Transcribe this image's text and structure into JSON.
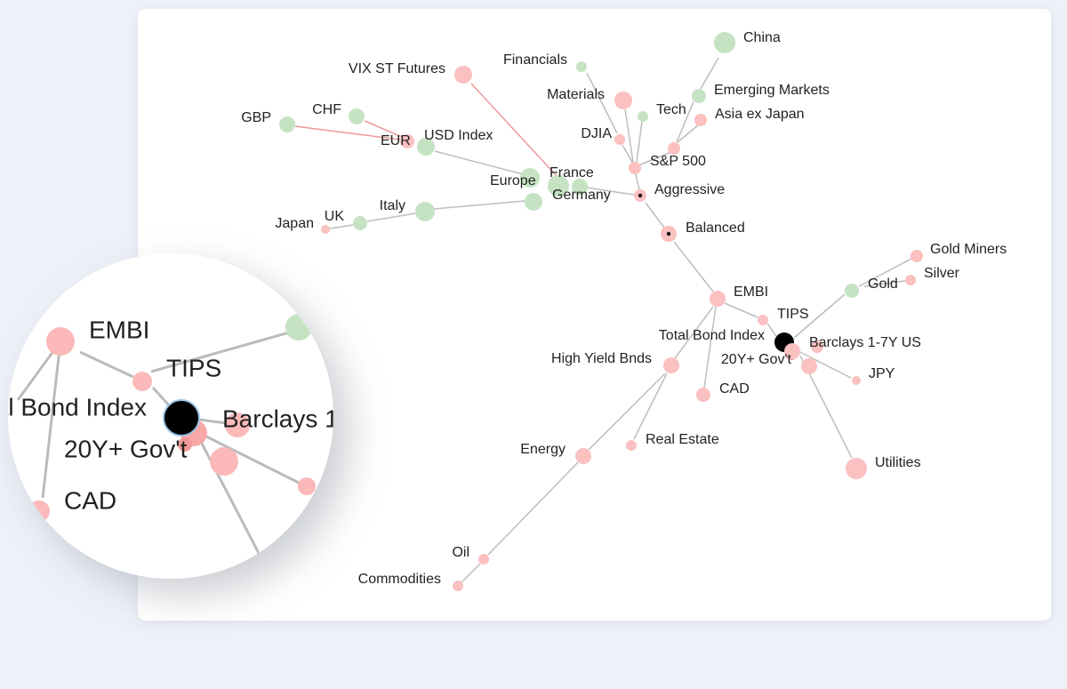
{
  "graph": {
    "nodes": [
      {
        "label": "China"
      },
      {
        "label": "Emerging Markets"
      },
      {
        "label": "Asia ex Japan"
      },
      {
        "label": "Financials"
      },
      {
        "label": "Materials"
      },
      {
        "label": "Tech"
      },
      {
        "label": "DJIA"
      },
      {
        "label": "S&P 500"
      },
      {
        "label": "VIX ST Futures"
      },
      {
        "label": "Aggressive"
      },
      {
        "label": "Balanced"
      },
      {
        "label": "GBP"
      },
      {
        "label": "CHF"
      },
      {
        "label": "EUR"
      },
      {
        "label": "USD Index"
      },
      {
        "label": "Europe"
      },
      {
        "label": "France"
      },
      {
        "label": "Germany"
      },
      {
        "label": "Italy"
      },
      {
        "label": "UK"
      },
      {
        "label": "Japan"
      },
      {
        "label": "EMBI"
      },
      {
        "label": "TIPS"
      },
      {
        "label": "Total Bond Index"
      },
      {
        "label": "Barclays 1-7Y US"
      },
      {
        "label": "20Y+ Gov't"
      },
      {
        "label": "JPY"
      },
      {
        "label": "CAD"
      },
      {
        "label": "High Yield Bnds"
      },
      {
        "label": "Gold"
      },
      {
        "label": "Silver"
      },
      {
        "label": "Gold Miners"
      },
      {
        "label": "Utilities"
      },
      {
        "label": "Real Estate"
      },
      {
        "label": "Energy"
      },
      {
        "label": "Oil"
      },
      {
        "label": "Commodities"
      }
    ]
  }
}
